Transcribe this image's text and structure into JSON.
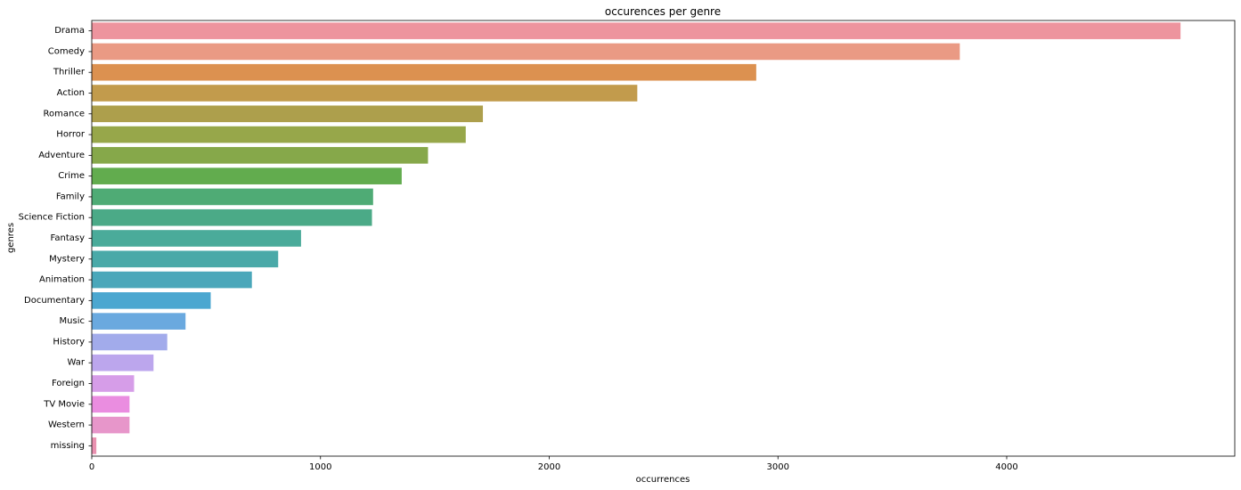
{
  "chart_data": {
    "type": "bar",
    "orientation": "horizontal",
    "title": "occurences per genre",
    "xlabel": "occurrences",
    "ylabel": "genres",
    "xlim": [
      0,
      5000
    ],
    "x_ticks": [
      0,
      1000,
      2000,
      3000,
      4000
    ],
    "grid": false,
    "legend": "none",
    "categories": [
      "Drama",
      "Comedy",
      "Thriller",
      "Action",
      "Romance",
      "Horror",
      "Adventure",
      "Crime",
      "Family",
      "Science Fiction",
      "Fantasy",
      "Mystery",
      "Animation",
      "Documentary",
      "Music",
      "History",
      "War",
      "Foreign",
      "TV Movie",
      "Western",
      "missing"
    ],
    "values": [
      4760,
      3795,
      2905,
      2385,
      1710,
      1635,
      1470,
      1355,
      1230,
      1225,
      915,
      815,
      700,
      520,
      410,
      330,
      270,
      185,
      165,
      165,
      20
    ],
    "colors": [
      "#ed949e",
      "#ea9a84",
      "#dc9150",
      "#c29b4c",
      "#ad9f4c",
      "#97a74a",
      "#86a84a",
      "#62ac4e",
      "#4fab75",
      "#4baa87",
      "#4aab9a",
      "#4aa9a8",
      "#4aa7ba",
      "#4ba7d0",
      "#6aa9df",
      "#a2abeb",
      "#bca6ed",
      "#d69de8",
      "#ea8de0",
      "#e796ca",
      "#e991b0"
    ]
  }
}
